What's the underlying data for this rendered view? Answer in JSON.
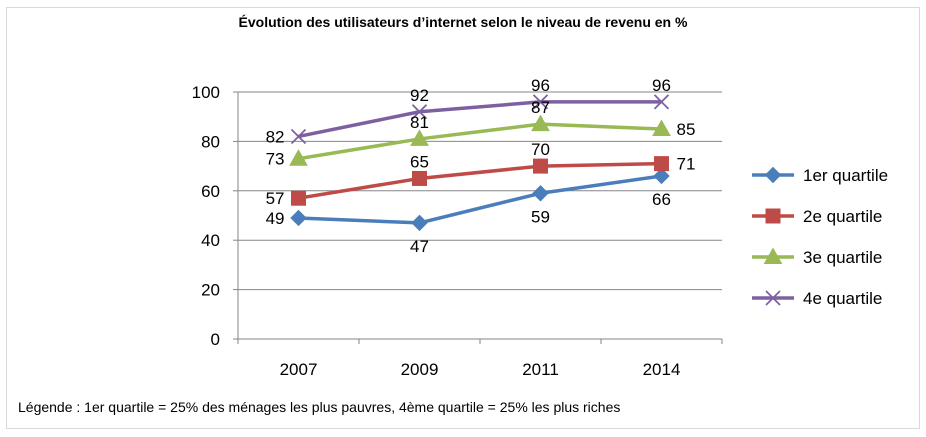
{
  "chart_data": {
    "type": "line",
    "title": "Évolution des utilisateurs d’internet selon le niveau de revenu en %",
    "categories": [
      "2007",
      "2009",
      "2011",
      "2014"
    ],
    "ylim": [
      0,
      100
    ],
    "yticks": [
      "0",
      "20",
      "40",
      "60",
      "80",
      "100"
    ],
    "grid": true,
    "legend_position": "right",
    "series": [
      {
        "name": "1er quartile",
        "values": [
          49,
          47,
          59,
          66
        ],
        "color": "#4a7ebb",
        "marker": "diamond",
        "label_side": [
          "left",
          "below",
          "below",
          "below"
        ]
      },
      {
        "name": "2e quartile",
        "values": [
          57,
          65,
          70,
          71
        ],
        "color": "#be4b48",
        "marker": "square",
        "label_side": [
          "left",
          "above",
          "above",
          "right"
        ]
      },
      {
        "name": "3e quartile",
        "values": [
          73,
          81,
          87,
          85
        ],
        "color": "#98b954",
        "marker": "triangle",
        "label_side": [
          "left",
          "above",
          "above",
          "right"
        ]
      },
      {
        "name": "4e quartile",
        "values": [
          82,
          92,
          96,
          96
        ],
        "color": "#7d60a0",
        "marker": "x",
        "label_side": [
          "left",
          "above",
          "above",
          "above"
        ]
      }
    ]
  },
  "footnote": "Légende : 1er quartile = 25% des ménages les plus pauvres, 4ème quartile = 25% les plus riches"
}
